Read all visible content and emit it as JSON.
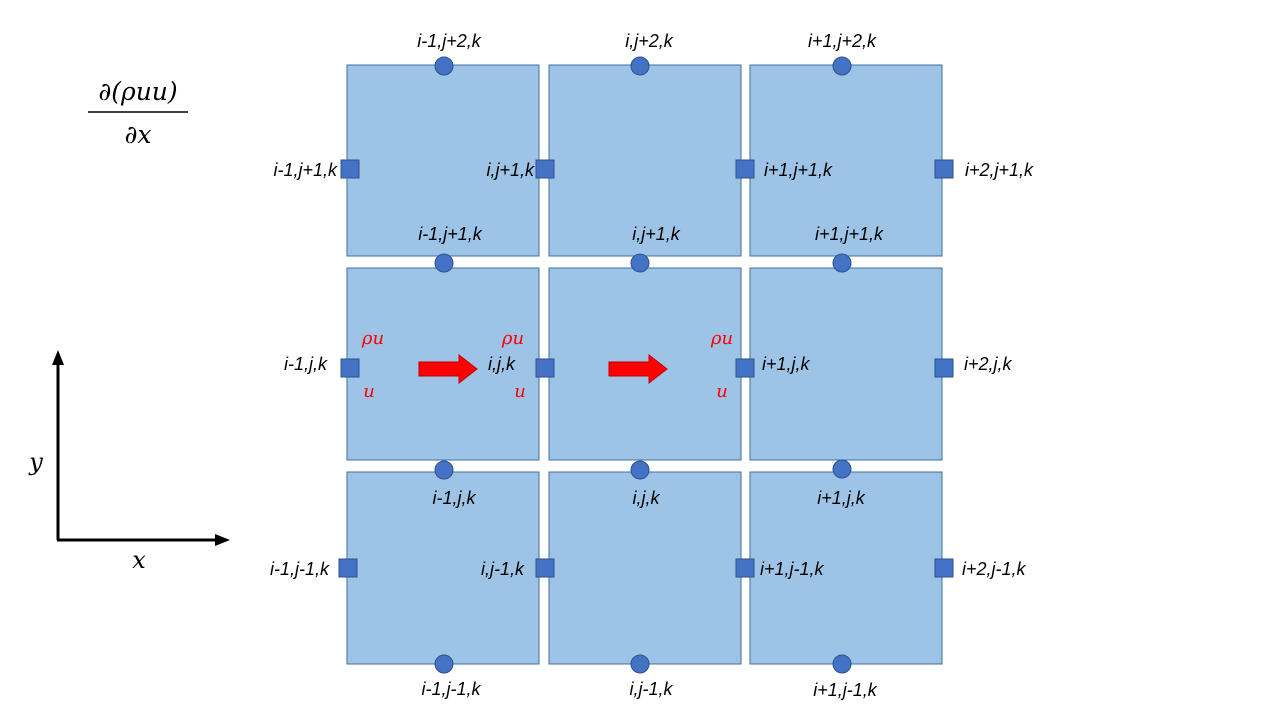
{
  "equation": {
    "numerator": "∂(ρuu)",
    "denominator": "∂x"
  },
  "axes": {
    "x_label": "x",
    "y_label": "y"
  },
  "face_labels": {
    "row_top": [
      "i-1,j+1,k",
      "i,j+1,k",
      "i+1,j+1,k",
      "i+2,j+1,k"
    ],
    "row_mid": [
      "i-1,j,k",
      "i,j,k",
      "i+1,j,k",
      "i+2,j,k"
    ],
    "row_bot": [
      "i-1,j-1,k",
      "i,j-1,k",
      "i+1,j-1,k",
      "i+2,j-1,k"
    ]
  },
  "edge_labels": {
    "top": [
      "i-1,j+2,k",
      "i,j+2,k",
      "i+1,j+2,k"
    ],
    "upper": [
      "i-1,j+1,k",
      "i,j+1,k",
      "i+1,j+1,k"
    ],
    "lower": [
      "i-1,j,k",
      "i,j,k",
      "i+1,j,k"
    ],
    "bottom": [
      "i-1,j-1,k",
      "i,j-1,k",
      "i+1,j-1,k"
    ]
  },
  "flux_labels": {
    "upper": "ρu",
    "lower": "u"
  },
  "colors": {
    "cell": "#9dc3e6",
    "node": "#4472c4",
    "arrow": "#ff0000",
    "flux_text": "#ff0000"
  }
}
